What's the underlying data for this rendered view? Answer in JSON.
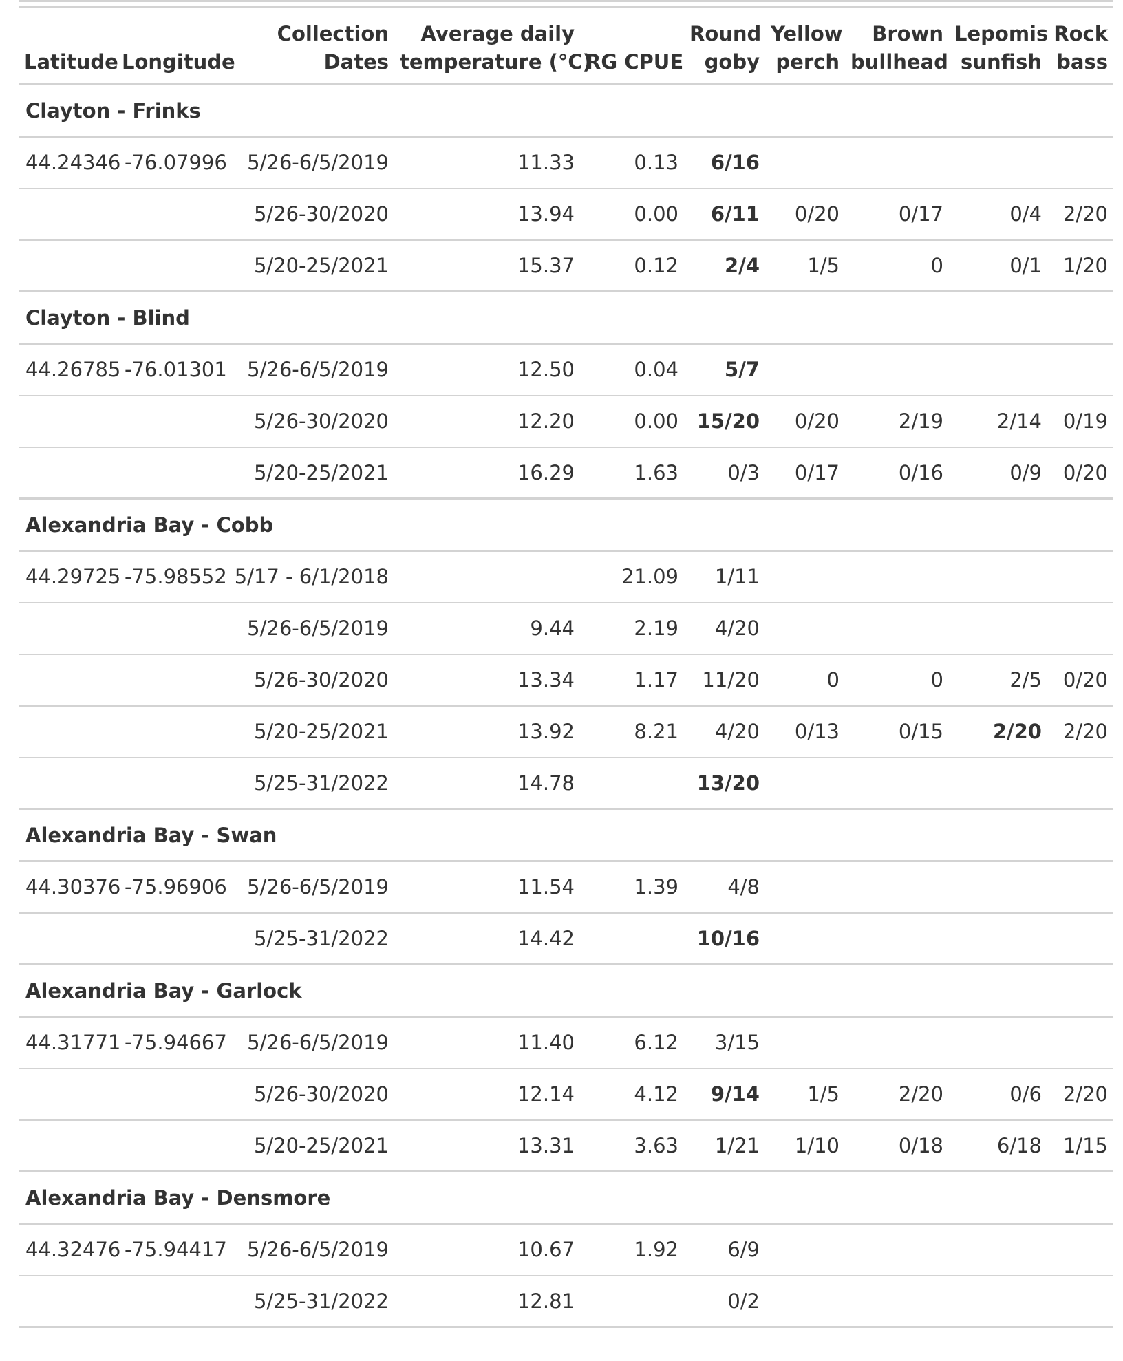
{
  "headers": {
    "latitude": [
      "Latitude"
    ],
    "longitude": [
      "Longitude"
    ],
    "dates": [
      "Collection",
      "Dates"
    ],
    "temp": [
      "Average daily",
      "temperature (°C)"
    ],
    "cpue": [
      "RG CPUE"
    ],
    "goby": [
      "Round",
      "goby"
    ],
    "perch": [
      "Yellow",
      "perch"
    ],
    "bullhead": [
      "Brown",
      "bullhead"
    ],
    "sunfish": [
      "Lepomis",
      "sunfish"
    ],
    "bass": [
      "Rock",
      "bass"
    ]
  },
  "groups": [
    {
      "name": "Clayton - Frinks",
      "rows": [
        {
          "lat": "44.24346",
          "lon": "-76.07996",
          "dates": "5/26-6/5/2019",
          "temp": "11.33",
          "cpue": "0.13",
          "goby": "6/16",
          "goby_bold": true,
          "perch": "",
          "bullhead": "",
          "sunfish": "",
          "bass": ""
        },
        {
          "lat": "",
          "lon": "",
          "dates": "5/26-30/2020",
          "temp": "13.94",
          "cpue": "0.00",
          "goby": "6/11",
          "goby_bold": true,
          "perch": "0/20",
          "bullhead": "0/17",
          "sunfish": "0/4",
          "bass": "2/20"
        },
        {
          "lat": "",
          "lon": "",
          "dates": "5/20-25/2021",
          "temp": "15.37",
          "cpue": "0.12",
          "goby": "2/4",
          "goby_bold": true,
          "perch": "1/5",
          "bullhead": "0",
          "sunfish": "0/1",
          "bass": "1/20"
        }
      ]
    },
    {
      "name": "Clayton - Blind",
      "rows": [
        {
          "lat": "44.26785",
          "lon": "-76.01301",
          "dates": "5/26-6/5/2019",
          "temp": "12.50",
          "cpue": "0.04",
          "goby": "5/7",
          "goby_bold": true,
          "perch": "",
          "bullhead": "",
          "sunfish": "",
          "bass": ""
        },
        {
          "lat": "",
          "lon": "",
          "dates": "5/26-30/2020",
          "temp": "12.20",
          "cpue": "0.00",
          "goby": "15/20",
          "goby_bold": true,
          "perch": "0/20",
          "bullhead": "2/19",
          "sunfish": "2/14",
          "bass": "0/19"
        },
        {
          "lat": "",
          "lon": "",
          "dates": "5/20-25/2021",
          "temp": "16.29",
          "cpue": "1.63",
          "goby": "0/3",
          "goby_bold": false,
          "perch": "0/17",
          "bullhead": "0/16",
          "sunfish": "0/9",
          "bass": "0/20"
        }
      ]
    },
    {
      "name": "Alexandria Bay - Cobb",
      "rows": [
        {
          "lat": "44.29725",
          "lon": "-75.98552",
          "dates": "5/17 - 6/1/2018",
          "temp": "",
          "cpue": "21.09",
          "goby": "1/11",
          "goby_bold": false,
          "perch": "",
          "bullhead": "",
          "sunfish": "",
          "bass": ""
        },
        {
          "lat": "",
          "lon": "",
          "dates": "5/26-6/5/2019",
          "temp": "9.44",
          "cpue": "2.19",
          "goby": "4/20",
          "goby_bold": false,
          "perch": "",
          "bullhead": "",
          "sunfish": "",
          "bass": ""
        },
        {
          "lat": "",
          "lon": "",
          "dates": "5/26-30/2020",
          "temp": "13.34",
          "cpue": "1.17",
          "goby": "11/20",
          "goby_bold": false,
          "perch": "0",
          "bullhead": "0",
          "sunfish": "2/5",
          "bass": "0/20"
        },
        {
          "lat": "",
          "lon": "",
          "dates": "5/20-25/2021",
          "temp": "13.92",
          "cpue": "8.21",
          "goby": "4/20",
          "goby_bold": false,
          "perch": "0/13",
          "bullhead": "0/15",
          "sunfish": "2/20",
          "sunfish_bold": true,
          "bass": "2/20"
        },
        {
          "lat": "",
          "lon": "",
          "dates": "5/25-31/2022",
          "temp": "14.78",
          "cpue": "",
          "goby": "13/20",
          "goby_bold": true,
          "perch": "",
          "bullhead": "",
          "sunfish": "",
          "bass": ""
        }
      ]
    },
    {
      "name": "Alexandria Bay - Swan",
      "rows": [
        {
          "lat": "44.30376",
          "lon": "-75.96906",
          "dates": "5/26-6/5/2019",
          "temp": "11.54",
          "cpue": "1.39",
          "goby": "4/8",
          "goby_bold": false,
          "perch": "",
          "bullhead": "",
          "sunfish": "",
          "bass": ""
        },
        {
          "lat": "",
          "lon": "",
          "dates": "5/25-31/2022",
          "temp": "14.42",
          "cpue": "",
          "goby": "10/16",
          "goby_bold": true,
          "perch": "",
          "bullhead": "",
          "sunfish": "",
          "bass": ""
        }
      ]
    },
    {
      "name": "Alexandria Bay - Garlock",
      "rows": [
        {
          "lat": "44.31771",
          "lon": "-75.94667",
          "dates": "5/26-6/5/2019",
          "temp": "11.40",
          "cpue": "6.12",
          "goby": "3/15",
          "goby_bold": false,
          "perch": "",
          "bullhead": "",
          "sunfish": "",
          "bass": ""
        },
        {
          "lat": "",
          "lon": "",
          "dates": "5/26-30/2020",
          "temp": "12.14",
          "cpue": "4.12",
          "goby": "9/14",
          "goby_bold": true,
          "perch": "1/5",
          "bullhead": "2/20",
          "sunfish": "0/6",
          "bass": "2/20"
        },
        {
          "lat": "",
          "lon": "",
          "dates": "5/20-25/2021",
          "temp": "13.31",
          "cpue": "3.63",
          "goby": "1/21",
          "goby_bold": false,
          "perch": "1/10",
          "bullhead": "0/18",
          "sunfish": "6/18",
          "bass": "1/15"
        }
      ]
    },
    {
      "name": "Alexandria Bay - Densmore",
      "rows": [
        {
          "lat": "44.32476",
          "lon": "-75.94417",
          "dates": "5/26-6/5/2019",
          "temp": "10.67",
          "cpue": "1.92",
          "goby": "6/9",
          "goby_bold": false,
          "perch": "",
          "bullhead": "",
          "sunfish": "",
          "bass": ""
        },
        {
          "lat": "",
          "lon": "",
          "dates": "5/25-31/2022",
          "temp": "12.81",
          "cpue": "",
          "goby": "0/2",
          "goby_bold": false,
          "perch": "",
          "bullhead": "",
          "sunfish": "",
          "bass": ""
        }
      ]
    }
  ]
}
